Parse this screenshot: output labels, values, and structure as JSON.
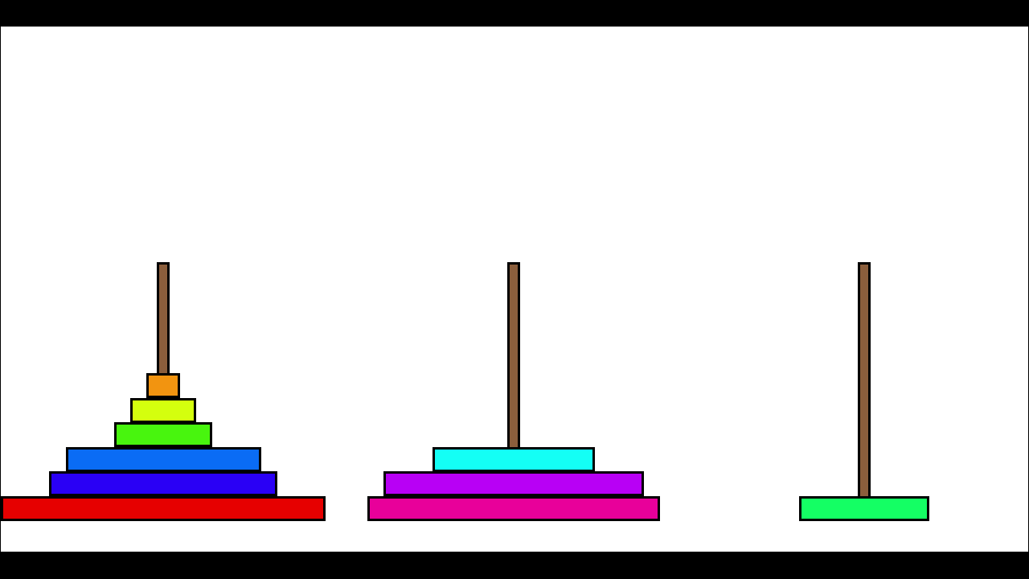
{
  "game": "tower-of-hanoi",
  "peg_color": "#8b5e3c",
  "pegs": [
    {
      "name": "left",
      "disks": [
        {
          "size": 10,
          "color": "#e60000"
        },
        {
          "size": 7,
          "color": "#2a00f5"
        },
        {
          "size": 6,
          "color": "#0a6cf5"
        },
        {
          "size": 3,
          "color": "#48f50e"
        },
        {
          "size": 2,
          "color": "#d4ff0e"
        },
        {
          "size": 1,
          "color": "#f29410"
        }
      ]
    },
    {
      "name": "middle",
      "disks": [
        {
          "size": 9,
          "color": "#e8009a"
        },
        {
          "size": 8,
          "color": "#b800f5"
        },
        {
          "size": 5,
          "color": "#14fff5"
        }
      ]
    },
    {
      "name": "right",
      "disks": [
        {
          "size": 4,
          "color": "#14ff64"
        }
      ]
    }
  ]
}
